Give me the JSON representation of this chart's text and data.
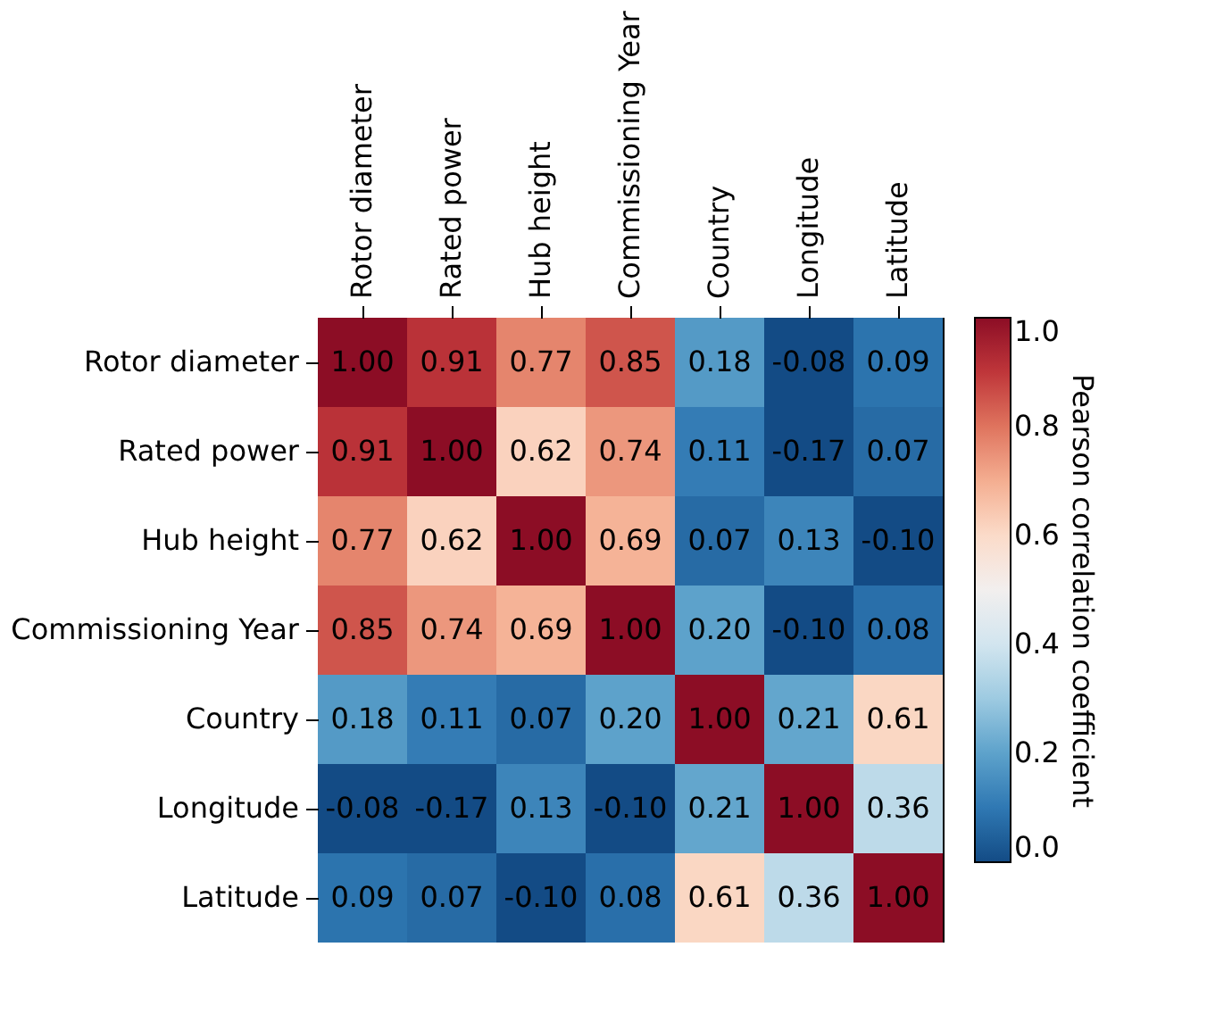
{
  "chart_data": {
    "type": "heatmap",
    "categories": [
      "Rotor diameter",
      "Rated power",
      "Hub height",
      "Commissioning Year",
      "Country",
      "Longitude",
      "Latitude"
    ],
    "y_categories": [
      "Rotor diameter",
      "Rated power",
      "Hub height",
      "Commissioning Year",
      "Country",
      "Longitude",
      "Latitude"
    ],
    "cells": [
      [
        1.0,
        0.91,
        0.77,
        0.85,
        0.18,
        -0.08,
        0.09
      ],
      [
        0.91,
        1.0,
        0.62,
        0.74,
        0.11,
        -0.17,
        0.07
      ],
      [
        0.77,
        0.62,
        1.0,
        0.69,
        0.07,
        0.13,
        -0.1
      ],
      [
        0.85,
        0.74,
        0.69,
        1.0,
        0.2,
        -0.1,
        0.08
      ],
      [
        0.18,
        0.11,
        0.07,
        0.2,
        1.0,
        0.21,
        0.61
      ],
      [
        -0.08,
        -0.17,
        0.13,
        -0.1,
        0.21,
        1.0,
        0.36
      ],
      [
        0.09,
        0.07,
        -0.1,
        0.08,
        0.61,
        0.36,
        1.0
      ]
    ],
    "cell_labels": [
      [
        "1.00",
        "0.91",
        "0.77",
        "0.85",
        "0.18",
        "-0.08",
        "0.09"
      ],
      [
        "0.91",
        "1.00",
        "0.62",
        "0.74",
        "0.11",
        "-0.17",
        "0.07"
      ],
      [
        "0.77",
        "0.62",
        "1.00",
        "0.69",
        "0.07",
        "0.13",
        "-0.10"
      ],
      [
        "0.85",
        "0.74",
        "0.69",
        "1.00",
        "0.20",
        "-0.10",
        "0.08"
      ],
      [
        "0.18",
        "0.11",
        "0.07",
        "0.20",
        "1.00",
        "0.21",
        "0.61"
      ],
      [
        "-0.08",
        "-0.17",
        "0.13",
        "-0.10",
        "0.21",
        "1.00",
        "0.36"
      ],
      [
        "0.09",
        "0.07",
        "-0.10",
        "0.08",
        "0.61",
        "0.36",
        "1.00"
      ]
    ],
    "clabel": "Pearson correlation coefficient",
    "clim": [
      0,
      1
    ],
    "cticks": [
      {
        "value": 0,
        "label": "0.0"
      },
      {
        "value": 0.2,
        "label": "0.2"
      },
      {
        "value": 0.4,
        "label": "0.4"
      },
      {
        "value": 0.6,
        "label": "0.6"
      },
      {
        "value": 0.8,
        "label": "0.8"
      },
      {
        "value": 1,
        "label": "1.0"
      }
    ]
  }
}
